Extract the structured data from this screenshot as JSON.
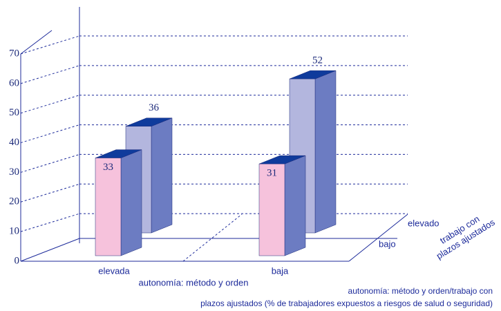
{
  "chart_data": {
    "type": "bar3d",
    "categories": [
      "elevada",
      "baja"
    ],
    "series": [
      {
        "name": "bajo",
        "color": "#f6c2dc",
        "values": [
          33,
          31
        ]
      },
      {
        "name": "elevado",
        "color": "#b3b6de",
        "values": [
          36,
          52
        ]
      }
    ],
    "side_color": "#6c7cc2",
    "top_color": "#0f3b9c",
    "ylim": [
      0,
      70
    ],
    "yticks": [
      0,
      10,
      20,
      30,
      40,
      50,
      60,
      70
    ],
    "grid": true,
    "xlabel": "autonomía: método y orden",
    "zlabel": [
      "trabajo con",
      "plazos ajustados"
    ],
    "caption": [
      "autonomía: método y orden/trabajo con",
      "plazos ajustados (% de trabajadores expuestos a riesgos de salud o seguridad)"
    ]
  }
}
